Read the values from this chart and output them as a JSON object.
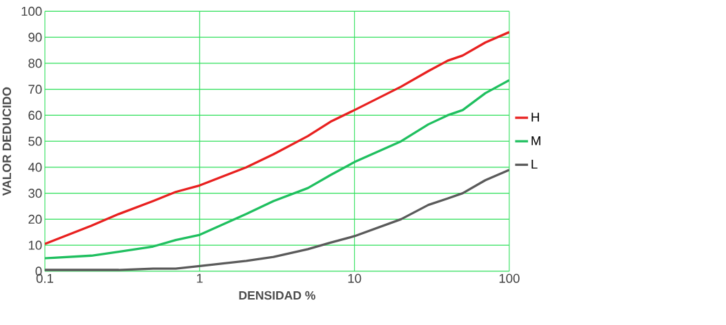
{
  "chart_data": {
    "type": "line",
    "xlabel": "DENSIDAD %",
    "ylabel": "VALOR DEDUCIDO",
    "log": "x",
    "grid": true,
    "legend": "right",
    "marker": "none",
    "line_style": "solid",
    "xlim": [
      0.1,
      100
    ],
    "xticks": [
      0.1,
      1,
      10,
      100
    ],
    "ylim": [
      0,
      100
    ],
    "yticks": [
      0,
      10,
      20,
      30,
      40,
      50,
      60,
      70,
      80,
      90,
      100
    ],
    "x": [
      0.1,
      0.2,
      0.3,
      0.5,
      0.7,
      1,
      2,
      3,
      5,
      7,
      10,
      20,
      30,
      40,
      50,
      70,
      100
    ],
    "series": [
      {
        "name": "H",
        "color": "#e8201f",
        "values": [
          10.5,
          17.5,
          22,
          27,
          30.5,
          33,
          40,
          45,
          52,
          57.5,
          62,
          71,
          77,
          81,
          83,
          88,
          92
        ]
      },
      {
        "name": "M",
        "color": "#1fbf5f",
        "values": [
          5,
          6,
          7.5,
          9.5,
          12,
          14,
          22,
          27,
          32,
          37,
          42,
          50,
          56.5,
          60,
          62,
          68.5,
          73.5
        ]
      },
      {
        "name": "L",
        "color": "#5a5a5a",
        "values": [
          0.5,
          0.5,
          0.5,
          1,
          1,
          2,
          4,
          5.5,
          8.5,
          11,
          13.5,
          20,
          25.5,
          28,
          30,
          35,
          39
        ]
      }
    ]
  }
}
